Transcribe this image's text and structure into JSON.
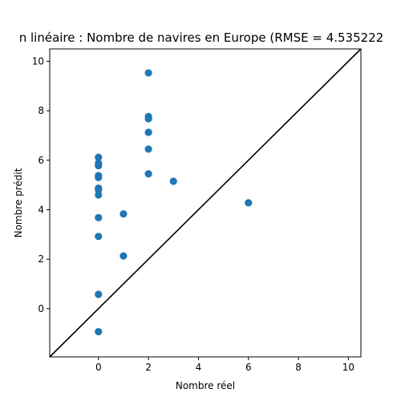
{
  "chart_data": {
    "type": "scatter",
    "title": "n linéaire : Nombre de navires en Europe (RMSE = 4.535222",
    "xlabel": "Nombre réel",
    "ylabel": "Nombre prédit",
    "xlim": [
      -1.95,
      10.5
    ],
    "ylim": [
      -1.95,
      10.5
    ],
    "xticks": [
      0,
      2,
      4,
      6,
      8,
      10
    ],
    "yticks": [
      0,
      2,
      4,
      6,
      8,
      10
    ],
    "grid": false,
    "point_color": "#1f77b4",
    "line_color": "#000000",
    "reference_line": {
      "x": [
        -1.95,
        10.5
      ],
      "y": [
        -1.95,
        10.5
      ]
    },
    "points": [
      {
        "x": 0,
        "y": 6.12
      },
      {
        "x": 0,
        "y": 5.88
      },
      {
        "x": 0,
        "y": 5.78
      },
      {
        "x": 0,
        "y": 5.38
      },
      {
        "x": 0,
        "y": 5.3
      },
      {
        "x": 0,
        "y": 4.87
      },
      {
        "x": 0,
        "y": 4.8
      },
      {
        "x": 0,
        "y": 4.6
      },
      {
        "x": 0,
        "y": 3.68
      },
      {
        "x": 0,
        "y": 2.92
      },
      {
        "x": 0,
        "y": 0.58
      },
      {
        "x": 0,
        "y": -0.93
      },
      {
        "x": 1,
        "y": 3.83
      },
      {
        "x": 1,
        "y": 2.13
      },
      {
        "x": 2,
        "y": 9.53
      },
      {
        "x": 2,
        "y": 7.77
      },
      {
        "x": 2,
        "y": 7.68
      },
      {
        "x": 2,
        "y": 7.13
      },
      {
        "x": 2,
        "y": 6.45
      },
      {
        "x": 2,
        "y": 5.45
      },
      {
        "x": 3,
        "y": 5.15
      },
      {
        "x": 6,
        "y": 4.28
      }
    ]
  }
}
